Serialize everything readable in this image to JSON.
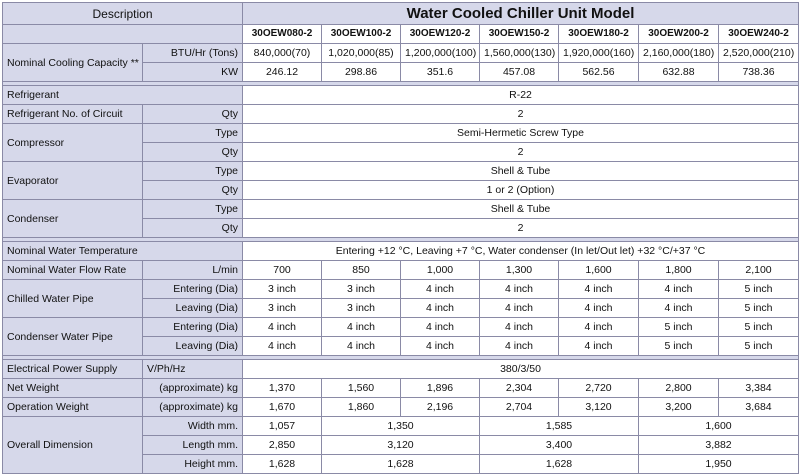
{
  "header": {
    "description": "Description",
    "title": "Water Cooled Chiller Unit Model",
    "models": [
      "30OEW080-2",
      "30OEW100-2",
      "30OEW120-2",
      "30OEW150-2",
      "30OEW180-2",
      "30OEW200-2",
      "30OEW240-2"
    ]
  },
  "capacity": {
    "label": "Nominal Cooling Capacity **",
    "btu_unit": "BTU/Hr (Tons)",
    "btu_values": [
      "840,000(70)",
      "1,020,000(85)",
      "1,200,000(100)",
      "1,560,000(130)",
      "1,920,000(160)",
      "2,160,000(180)",
      "2,520,000(210)"
    ],
    "kw_unit": "KW",
    "kw_values": [
      "246.12",
      "298.86",
      "351.6",
      "457.08",
      "562.56",
      "632.88",
      "738.36"
    ]
  },
  "refrigerant": {
    "label": "Refrigerant",
    "value": "R-22"
  },
  "circuits": {
    "label": "Refrigerant No. of  Circuit",
    "unit": "Qty",
    "value": "2"
  },
  "compressor": {
    "label": "Compressor",
    "type_unit": "Type",
    "type_value": "Semi-Hermetic Screw Type",
    "qty_unit": "Qty",
    "qty_value": "2"
  },
  "evaporator": {
    "label": "Evaporator",
    "type_unit": "Type",
    "type_value": "Shell & Tube",
    "qty_unit": "Qty",
    "qty_value": "1 or 2 (Option)"
  },
  "condenser": {
    "label": "Condenser",
    "type_unit": "Type",
    "type_value": "Shell & Tube",
    "qty_unit": "Qty",
    "qty_value": "2"
  },
  "water_temp": {
    "label": "Nominal Water Temperature",
    "value": "Entering +12 °C, Leaving +7 °C, Water condenser (In let/Out let) +32 °C/+37 °C"
  },
  "flow_rate": {
    "label": "Nominal Water Flow Rate",
    "unit": "L/min",
    "values": [
      "700",
      "850",
      "1,000",
      "1,300",
      "1,600",
      "1,800",
      "2,100"
    ]
  },
  "chilled_pipe": {
    "label": "Chilled Water Pipe",
    "entering_unit": "Entering (Dia)",
    "entering_values": [
      "3 inch",
      "3 inch",
      "4 inch",
      "4 inch",
      "4 inch",
      "4 inch",
      "5 inch"
    ],
    "leaving_unit": "Leaving (Dia)",
    "leaving_values": [
      "3 inch",
      "3 inch",
      "4 inch",
      "4 inch",
      "4 inch",
      "4 inch",
      "5 inch"
    ]
  },
  "condenser_pipe": {
    "label": "Condenser Water Pipe",
    "entering_unit": "Entering (Dia)",
    "entering_values": [
      "4 inch",
      "4 inch",
      "4 inch",
      "4 inch",
      "4 inch",
      "5 inch",
      "5 inch"
    ],
    "leaving_unit": "Leaving (Dia)",
    "leaving_values": [
      "4 inch",
      "4 inch",
      "4 inch",
      "4 inch",
      "4 inch",
      "5 inch",
      "5 inch"
    ]
  },
  "power": {
    "label": "Electrical Power Supply",
    "unit": "V/Ph/Hz",
    "value": "380/3/50"
  },
  "net_weight": {
    "label": "Net Weight",
    "unit": "(approximate) kg",
    "values": [
      "1,370",
      "1,560",
      "1,896",
      "2,304",
      "2,720",
      "2,800",
      "3,384"
    ]
  },
  "op_weight": {
    "label": "Operation Weight",
    "unit": "(approximate) kg",
    "values": [
      "1,670",
      "1,860",
      "2,196",
      "2,704",
      "3,120",
      "3,200",
      "3,684"
    ]
  },
  "dimension": {
    "label": "Overall Dimension",
    "width_unit": "Width  mm.",
    "width_values": [
      "1,057",
      "1,350",
      "1,585",
      "1,600"
    ],
    "length_unit": "Length mm.",
    "length_values": [
      "2,850",
      "3,120",
      "3,400",
      "3,882"
    ],
    "height_unit": "Height mm.",
    "height_values": [
      "1,628",
      "1,628",
      "1,628",
      "1,950"
    ]
  }
}
